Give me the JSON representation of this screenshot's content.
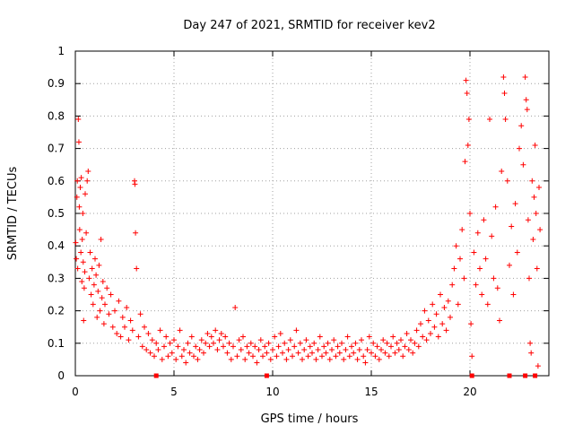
{
  "chart_data": {
    "type": "scatter",
    "title": "Day 247 of 2021, SRMTID for receiver kev2",
    "xlabel": "GPS time / hours",
    "ylabel": "SRMTID / TECUs",
    "xlim": [
      0,
      24
    ],
    "ylim": [
      0,
      1
    ],
    "xticks": [
      "0",
      "5",
      "10",
      "15",
      "20"
    ],
    "xtick_values": [
      0,
      5,
      10,
      15,
      20
    ],
    "yticks": [
      "0",
      "0.1",
      "0.2",
      "0.3",
      "0.4",
      "0.5",
      "0.6",
      "0.7",
      "0.8",
      "0.9",
      "1"
    ],
    "ytick_values": [
      0,
      0.1,
      0.2,
      0.3,
      0.4,
      0.5,
      0.6,
      0.7,
      0.8,
      0.9,
      1.0
    ],
    "grid": true,
    "marker": "+",
    "color": "#ff0000",
    "series": [
      {
        "name": "SRMTID",
        "points": [
          [
            0.02,
            0.41
          ],
          [
            0.05,
            0.36
          ],
          [
            0.08,
            0.55
          ],
          [
            0.1,
            0.6
          ],
          [
            0.12,
            0.33
          ],
          [
            0.15,
            0.79
          ],
          [
            0.18,
            0.72
          ],
          [
            0.2,
            0.52
          ],
          [
            0.22,
            0.45
          ],
          [
            0.25,
            0.58
          ],
          [
            0.28,
            0.38
          ],
          [
            0.3,
            0.61
          ],
          [
            0.33,
            0.29
          ],
          [
            0.35,
            0.42
          ],
          [
            0.38,
            0.5
          ],
          [
            0.4,
            0.35
          ],
          [
            0.42,
            0.17
          ],
          [
            0.45,
            0.27
          ],
          [
            0.48,
            0.32
          ],
          [
            0.5,
            0.56
          ],
          [
            0.55,
            0.44
          ],
          [
            0.6,
            0.6
          ],
          [
            0.65,
            0.63
          ],
          [
            0.7,
            0.3
          ],
          [
            0.75,
            0.38
          ],
          [
            0.8,
            0.25
          ],
          [
            0.85,
            0.33
          ],
          [
            0.9,
            0.22
          ],
          [
            0.95,
            0.28
          ],
          [
            1.0,
            0.36
          ],
          [
            1.05,
            0.31
          ],
          [
            1.1,
            0.18
          ],
          [
            1.15,
            0.26
          ],
          [
            1.2,
            0.34
          ],
          [
            1.25,
            0.2
          ],
          [
            1.3,
            0.42
          ],
          [
            1.35,
            0.24
          ],
          [
            1.4,
            0.29
          ],
          [
            1.45,
            0.16
          ],
          [
            1.5,
            0.22
          ],
          [
            1.6,
            0.27
          ],
          [
            1.7,
            0.19
          ],
          [
            1.8,
            0.25
          ],
          [
            1.9,
            0.15
          ],
          [
            2.0,
            0.2
          ],
          [
            2.1,
            0.13
          ],
          [
            2.2,
            0.23
          ],
          [
            2.3,
            0.12
          ],
          [
            2.4,
            0.18
          ],
          [
            2.5,
            0.15
          ],
          [
            2.6,
            0.21
          ],
          [
            2.7,
            0.11
          ],
          [
            2.8,
            0.17
          ],
          [
            2.9,
            0.14
          ],
          [
            3.0,
            0.6
          ],
          [
            3.02,
            0.59
          ],
          [
            3.05,
            0.44
          ],
          [
            3.1,
            0.33
          ],
          [
            3.2,
            0.12
          ],
          [
            3.3,
            0.19
          ],
          [
            3.4,
            0.09
          ],
          [
            3.5,
            0.15
          ],
          [
            3.6,
            0.08
          ],
          [
            3.7,
            0.13
          ],
          [
            3.8,
            0.07
          ],
          [
            3.9,
            0.11
          ],
          [
            4.0,
            0.06
          ],
          [
            4.1,
            0.1
          ],
          [
            4.2,
            0.08
          ],
          [
            4.3,
            0.14
          ],
          [
            4.4,
            0.05
          ],
          [
            4.5,
            0.09
          ],
          [
            4.6,
            0.12
          ],
          [
            4.7,
            0.06
          ],
          [
            4.8,
            0.1
          ],
          [
            4.9,
            0.07
          ],
          [
            5.0,
            0.11
          ],
          [
            5.1,
            0.05
          ],
          [
            5.2,
            0.09
          ],
          [
            5.3,
            0.14
          ],
          [
            5.4,
            0.06
          ],
          [
            5.5,
            0.08
          ],
          [
            5.6,
            0.04
          ],
          [
            5.7,
            0.1
          ],
          [
            5.8,
            0.07
          ],
          [
            5.9,
            0.12
          ],
          [
            6.0,
            0.06
          ],
          [
            6.1,
            0.09
          ],
          [
            6.2,
            0.05
          ],
          [
            6.3,
            0.08
          ],
          [
            6.4,
            0.11
          ],
          [
            6.5,
            0.07
          ],
          [
            6.6,
            0.1
          ],
          [
            6.7,
            0.13
          ],
          [
            6.8,
            0.09
          ],
          [
            6.9,
            0.12
          ],
          [
            7.0,
            0.1
          ],
          [
            7.1,
            0.14
          ],
          [
            7.2,
            0.08
          ],
          [
            7.3,
            0.11
          ],
          [
            7.4,
            0.13
          ],
          [
            7.5,
            0.09
          ],
          [
            7.6,
            0.12
          ],
          [
            7.7,
            0.07
          ],
          [
            7.8,
            0.1
          ],
          [
            7.9,
            0.05
          ],
          [
            8.0,
            0.09
          ],
          [
            8.1,
            0.21
          ],
          [
            8.2,
            0.06
          ],
          [
            8.3,
            0.11
          ],
          [
            8.4,
            0.08
          ],
          [
            8.5,
            0.12
          ],
          [
            8.6,
            0.05
          ],
          [
            8.7,
            0.09
          ],
          [
            8.8,
            0.07
          ],
          [
            8.9,
            0.1
          ],
          [
            9.0,
            0.06
          ],
          [
            9.1,
            0.09
          ],
          [
            9.2,
            0.04
          ],
          [
            9.3,
            0.08
          ],
          [
            9.4,
            0.11
          ],
          [
            9.5,
            0.06
          ],
          [
            9.6,
            0.09
          ],
          [
            9.7,
            0.07
          ],
          [
            9.8,
            0.1
          ],
          [
            9.9,
            0.05
          ],
          [
            10.0,
            0.08
          ],
          [
            10.1,
            0.12
          ],
          [
            10.2,
            0.06
          ],
          [
            10.3,
            0.09
          ],
          [
            10.4,
            0.13
          ],
          [
            10.5,
            0.07
          ],
          [
            10.6,
            0.1
          ],
          [
            10.7,
            0.05
          ],
          [
            10.8,
            0.08
          ],
          [
            10.9,
            0.11
          ],
          [
            11.0,
            0.06
          ],
          [
            11.1,
            0.09
          ],
          [
            11.2,
            0.14
          ],
          [
            11.3,
            0.07
          ],
          [
            11.4,
            0.1
          ],
          [
            11.5,
            0.05
          ],
          [
            11.6,
            0.08
          ],
          [
            11.7,
            0.11
          ],
          [
            11.8,
            0.06
          ],
          [
            11.9,
            0.09
          ],
          [
            12.0,
            0.07
          ],
          [
            12.1,
            0.1
          ],
          [
            12.2,
            0.05
          ],
          [
            12.3,
            0.08
          ],
          [
            12.4,
            0.12
          ],
          [
            12.5,
            0.06
          ],
          [
            12.6,
            0.09
          ],
          [
            12.7,
            0.07
          ],
          [
            12.8,
            0.1
          ],
          [
            12.9,
            0.05
          ],
          [
            13.0,
            0.08
          ],
          [
            13.1,
            0.11
          ],
          [
            13.2,
            0.06
          ],
          [
            13.3,
            0.09
          ],
          [
            13.4,
            0.07
          ],
          [
            13.5,
            0.1
          ],
          [
            13.6,
            0.05
          ],
          [
            13.7,
            0.08
          ],
          [
            13.8,
            0.12
          ],
          [
            13.9,
            0.06
          ],
          [
            14.0,
            0.09
          ],
          [
            14.1,
            0.07
          ],
          [
            14.2,
            0.1
          ],
          [
            14.3,
            0.05
          ],
          [
            14.4,
            0.08
          ],
          [
            14.5,
            0.11
          ],
          [
            14.6,
            0.06
          ],
          [
            14.7,
            0.04
          ],
          [
            14.8,
            0.08
          ],
          [
            14.9,
            0.12
          ],
          [
            15.0,
            0.07
          ],
          [
            15.1,
            0.1
          ],
          [
            15.2,
            0.06
          ],
          [
            15.3,
            0.09
          ],
          [
            15.4,
            0.05
          ],
          [
            15.5,
            0.08
          ],
          [
            15.6,
            0.11
          ],
          [
            15.7,
            0.07
          ],
          [
            15.8,
            0.1
          ],
          [
            15.9,
            0.06
          ],
          [
            16.0,
            0.09
          ],
          [
            16.1,
            0.12
          ],
          [
            16.2,
            0.07
          ],
          [
            16.3,
            0.1
          ],
          [
            16.4,
            0.08
          ],
          [
            16.5,
            0.11
          ],
          [
            16.6,
            0.06
          ],
          [
            16.7,
            0.09
          ],
          [
            16.8,
            0.13
          ],
          [
            16.9,
            0.08
          ],
          [
            17.0,
            0.11
          ],
          [
            17.1,
            0.07
          ],
          [
            17.2,
            0.1
          ],
          [
            17.3,
            0.14
          ],
          [
            17.4,
            0.09
          ],
          [
            17.5,
            0.16
          ],
          [
            17.6,
            0.12
          ],
          [
            17.7,
            0.2
          ],
          [
            17.8,
            0.11
          ],
          [
            17.9,
            0.17
          ],
          [
            18.0,
            0.13
          ],
          [
            18.1,
            0.22
          ],
          [
            18.2,
            0.15
          ],
          [
            18.3,
            0.19
          ],
          [
            18.4,
            0.12
          ],
          [
            18.5,
            0.25
          ],
          [
            18.6,
            0.16
          ],
          [
            18.7,
            0.21
          ],
          [
            18.8,
            0.14
          ],
          [
            18.9,
            0.23
          ],
          [
            19.0,
            0.18
          ],
          [
            19.1,
            0.28
          ],
          [
            19.2,
            0.33
          ],
          [
            19.3,
            0.4
          ],
          [
            19.4,
            0.22
          ],
          [
            19.5,
            0.36
          ],
          [
            19.6,
            0.45
          ],
          [
            19.7,
            0.3
          ],
          [
            19.75,
            0.66
          ],
          [
            19.8,
            0.91
          ],
          [
            19.85,
            0.87
          ],
          [
            19.9,
            0.71
          ],
          [
            19.95,
            0.79
          ],
          [
            20.0,
            0.5
          ],
          [
            20.05,
            0.16
          ],
          [
            20.1,
            0.06
          ],
          [
            20.2,
            0.38
          ],
          [
            20.3,
            0.28
          ],
          [
            20.4,
            0.44
          ],
          [
            20.5,
            0.33
          ],
          [
            20.6,
            0.25
          ],
          [
            20.7,
            0.48
          ],
          [
            20.8,
            0.36
          ],
          [
            20.9,
            0.22
          ],
          [
            21.0,
            0.79
          ],
          [
            21.1,
            0.43
          ],
          [
            21.2,
            0.3
          ],
          [
            21.3,
            0.52
          ],
          [
            21.4,
            0.27
          ],
          [
            21.5,
            0.17
          ],
          [
            21.6,
            0.63
          ],
          [
            21.7,
            0.92
          ],
          [
            21.75,
            0.87
          ],
          [
            21.8,
            0.79
          ],
          [
            21.9,
            0.6
          ],
          [
            22.0,
            0.34
          ],
          [
            22.1,
            0.46
          ],
          [
            22.2,
            0.25
          ],
          [
            22.3,
            0.53
          ],
          [
            22.4,
            0.38
          ],
          [
            22.5,
            0.7
          ],
          [
            22.6,
            0.77
          ],
          [
            22.7,
            0.65
          ],
          [
            22.8,
            0.92
          ],
          [
            22.85,
            0.85
          ],
          [
            22.9,
            0.82
          ],
          [
            22.95,
            0.48
          ],
          [
            23.0,
            0.3
          ],
          [
            23.05,
            0.1
          ],
          [
            23.1,
            0.07
          ],
          [
            23.15,
            0.6
          ],
          [
            23.2,
            0.42
          ],
          [
            23.25,
            0.55
          ],
          [
            23.3,
            0.71
          ],
          [
            23.35,
            0.5
          ],
          [
            23.4,
            0.33
          ],
          [
            23.45,
            0.03
          ],
          [
            23.5,
            0.58
          ],
          [
            23.55,
            0.45
          ]
        ]
      }
    ],
    "axis_markers": {
      "name": "data gaps on x-axis",
      "x": [
        4.1,
        9.7,
        20.1,
        22.0,
        22.8,
        23.3
      ]
    }
  }
}
